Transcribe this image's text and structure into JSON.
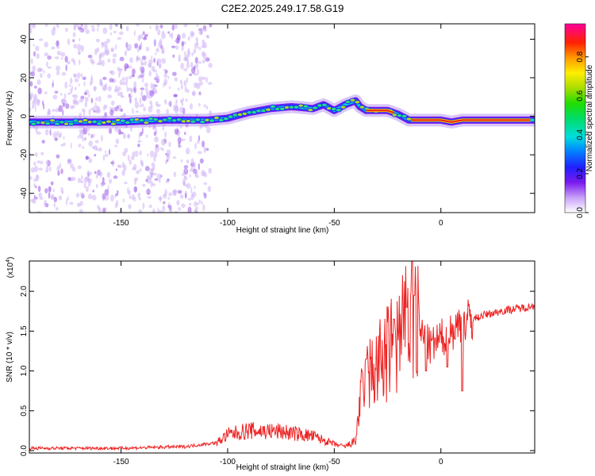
{
  "title": "C2E2.2025.249.17.58.G19",
  "colors": {
    "snr_line": "#ee2222",
    "trace_core": "#e8201a",
    "noise": "#b48af0"
  },
  "chart_data": [
    {
      "type": "heatmap",
      "xlabel": "Height of straight line (km)",
      "ylabel": "Frequency (Hz)",
      "xlim": [
        -193,
        44
      ],
      "ylim": [
        -50,
        48
      ],
      "xticks": [
        -150,
        -100,
        -50,
        0
      ],
      "yticks": [
        -40,
        -20,
        0,
        20,
        40
      ],
      "colorbar": {
        "label": "Normalized spectral amplitude",
        "range": [
          0,
          0.97
        ],
        "ticks": [
          0.0,
          0.2,
          0.4,
          0.6,
          0.8
        ]
      },
      "ridge": {
        "height_km": [
          -193,
          -170,
          -150,
          -130,
          -110,
          -100,
          -90,
          -80,
          -70,
          -60,
          -55,
          -50,
          -45,
          -40,
          -38,
          -35,
          -30,
          -25,
          -20,
          -15,
          -12,
          -5,
          0,
          5,
          10,
          20,
          30,
          40,
          44
        ],
        "freq_hz": [
          -3,
          -3,
          -3,
          -2,
          -2,
          -1,
          2,
          4,
          5,
          4,
          6,
          3,
          6,
          8,
          5,
          3,
          3,
          3,
          1,
          -2,
          -2,
          -2,
          -2,
          -3,
          -2,
          -2,
          -2,
          -2,
          -2
        ]
      }
    },
    {
      "type": "line",
      "xlabel": "Height of straight line (km)",
      "ylabel": "SNR (10 * v/v)",
      "multiplier_label": "(x10",
      "multiplier_exp": "4",
      "xlim": [
        -193,
        44
      ],
      "ylim": [
        -0.03,
        2.38
      ],
      "xticks": [
        -150,
        -100,
        -50,
        0
      ],
      "yticks": [
        0.0,
        0.5,
        1.0,
        1.5,
        2.0
      ],
      "envelope": {
        "x": [
          -193,
          -150,
          -120,
          -105,
          -100,
          -90,
          -75,
          -60,
          -50,
          -45,
          -40,
          -38,
          -35,
          -30,
          -25,
          -20,
          -15,
          -13,
          -10,
          -5,
          0,
          5,
          10,
          20,
          30,
          40,
          44
        ],
        "y": [
          0.03,
          0.03,
          0.05,
          0.1,
          0.2,
          0.25,
          0.24,
          0.18,
          0.08,
          0.05,
          0.12,
          0.6,
          0.9,
          1.05,
          1.2,
          1.4,
          1.55,
          1.6,
          1.5,
          1.3,
          1.4,
          1.5,
          1.6,
          1.7,
          1.76,
          1.8,
          1.82
        ]
      },
      "peaks": [
        {
          "x": -13.5,
          "y": 2.38
        },
        {
          "x": -12.5,
          "y": 1.95
        },
        {
          "x": -22,
          "y": 1.65
        },
        {
          "x": -35,
          "y": 1.15
        },
        {
          "x": -16,
          "y": 1.8
        }
      ],
      "dips": [
        {
          "x": 10,
          "y": 0.75
        },
        {
          "x": 3,
          "y": 1.05
        },
        {
          "x": -7,
          "y": 1.0
        }
      ]
    }
  ]
}
